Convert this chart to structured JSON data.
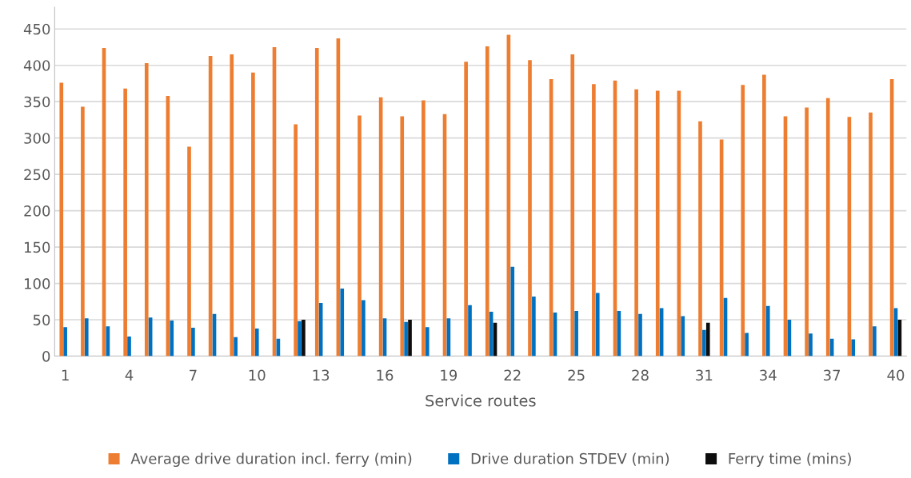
{
  "chart_data": {
    "type": "bar",
    "xlabel": "Service routes",
    "categories": [
      "1",
      null,
      null,
      "4",
      null,
      null,
      "7",
      null,
      null,
      "10",
      null,
      null,
      "13",
      null,
      null,
      "16",
      null,
      null,
      "19",
      null,
      null,
      "22",
      null,
      null,
      "25",
      null,
      null,
      "28",
      null,
      null,
      "31",
      null,
      null,
      "34",
      null,
      null,
      "37",
      null,
      null,
      "40"
    ],
    "series": [
      {
        "name": "Average drive duration incl. ferry (min)",
        "color": "#ed7d31",
        "values": [
          376,
          343,
          424,
          368,
          403,
          358,
          288,
          413,
          415,
          390,
          425,
          319,
          424,
          437,
          331,
          356,
          330,
          352,
          333,
          405,
          426,
          442,
          407,
          381,
          415,
          374,
          379,
          367,
          365,
          365,
          323,
          298,
          373,
          387,
          330,
          342,
          355,
          329,
          335,
          381
        ]
      },
      {
        "name": "Drive duration STDEV (min)",
        "color": "#0070c0",
        "values": [
          40,
          52,
          41,
          27,
          53,
          49,
          39,
          58,
          26,
          38,
          24,
          48,
          73,
          93,
          77,
          52,
          47,
          40,
          52,
          70,
          61,
          123,
          82,
          60,
          62,
          87,
          62,
          58,
          66,
          55,
          36,
          80,
          32,
          69,
          50,
          31,
          24,
          23,
          41,
          66
        ]
      },
      {
        "name": "Ferry time (mins)",
        "color": "#0d0d0d",
        "values": [
          null,
          null,
          null,
          null,
          null,
          null,
          null,
          null,
          null,
          null,
          null,
          50,
          null,
          null,
          null,
          null,
          50,
          null,
          null,
          null,
          46,
          null,
          null,
          null,
          null,
          null,
          null,
          null,
          null,
          null,
          46,
          null,
          null,
          null,
          null,
          null,
          null,
          null,
          null,
          50
        ]
      }
    ],
    "ylim": [
      0,
      480
    ],
    "yticks": [
      0,
      50,
      100,
      150,
      200,
      250,
      300,
      350,
      400,
      450
    ],
    "grid": "y",
    "legend": "bottom"
  }
}
